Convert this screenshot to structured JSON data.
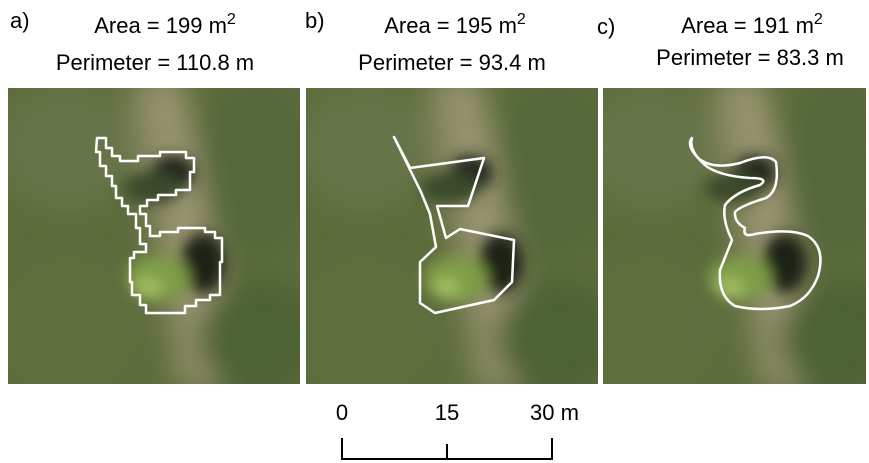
{
  "panels": [
    {
      "label": "a)",
      "area": "Area = 199 m",
      "area_exponent": "2",
      "perimeter": "Perimeter = 110.8 m"
    },
    {
      "label": "b)",
      "area": "Area = 195 m",
      "area_exponent": "2",
      "perimeter": "Perimeter = 93.4 m"
    },
    {
      "label": "c)",
      "area": "Area = 191 m",
      "area_exponent": "2",
      "perimeter": "Perimeter = 83.3 m"
    }
  ],
  "scale_bar": {
    "ticks": [
      "0",
      "15",
      "30 m"
    ]
  }
}
